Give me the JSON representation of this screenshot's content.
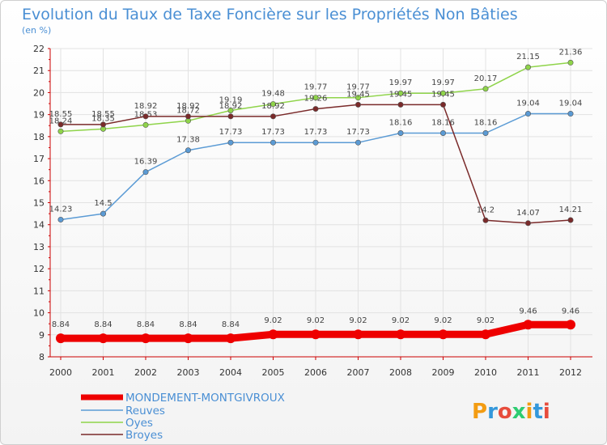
{
  "chart_data": {
    "type": "line",
    "title": "Evolution du Taux de Taxe Foncière sur les Propriétés Non Bâties",
    "ylabel": "(en %)",
    "xlabel": "",
    "x": [
      "2000",
      "2001",
      "2002",
      "2003",
      "2004",
      "2005",
      "2006",
      "2007",
      "2008",
      "2009",
      "2010",
      "2011",
      "2012"
    ],
    "ylim": [
      8,
      22
    ],
    "yticks": [
      "8",
      "9",
      "10",
      "11",
      "12",
      "13",
      "14",
      "15",
      "16",
      "17",
      "18",
      "19",
      "20",
      "21",
      "22"
    ],
    "series": [
      {
        "name": "MONDEMENT-MONTGIVROUX",
        "color": "#ee0000",
        "values": [
          8.84,
          8.84,
          8.84,
          8.84,
          8.84,
          9.02,
          9.02,
          9.02,
          9.02,
          9.02,
          9.02,
          9.46,
          9.46
        ],
        "labels": [
          "8.84",
          "8.84",
          "8.84",
          "8.84",
          "8.84",
          "9.02",
          "9.02",
          "9.02",
          "9.02",
          "9.02",
          "9.02",
          "9.46",
          "9.46"
        ]
      },
      {
        "name": "Reuves",
        "color": "#5b9bd5",
        "values": [
          14.23,
          14.5,
          16.39,
          17.38,
          17.73,
          17.73,
          17.73,
          17.73,
          18.16,
          18.16,
          18.16,
          19.04,
          19.04
        ],
        "labels": [
          "14.23",
          "14.5",
          "16.39",
          "17.38",
          "17.73",
          "17.73",
          "17.73",
          "17.73",
          "18.16",
          "18.16",
          "18.16",
          "19.04",
          "19.04"
        ]
      },
      {
        "name": "Oyes",
        "color": "#8fd44a",
        "values": [
          18.24,
          18.35,
          18.53,
          18.72,
          19.19,
          19.48,
          19.77,
          19.77,
          19.97,
          19.97,
          20.17,
          21.15,
          21.36
        ],
        "labels": [
          "18.24",
          "18.35",
          "18.53",
          "18.72",
          "19.19",
          "19.48",
          "19.77",
          "19.77",
          "19.97",
          "19.97",
          "20.17",
          "21.15",
          "21.36"
        ]
      },
      {
        "name": "Broyes",
        "color": "#7a2a2a",
        "values": [
          18.55,
          18.55,
          18.92,
          18.92,
          18.92,
          18.92,
          19.26,
          19.45,
          19.45,
          19.45,
          14.2,
          14.07,
          14.21
        ],
        "labels": [
          "18.55",
          "18.55",
          "18.92",
          "18.92",
          "18.92",
          "18.92",
          "19.26",
          "19.45",
          "19.45",
          "19.45",
          "14.2",
          "14.07",
          "14.21"
        ]
      }
    ]
  },
  "brand": {
    "logo_text": "Proxiti",
    "colors": [
      "#f39c12",
      "#3498db",
      "#e74c3c",
      "#2ecc71"
    ]
  }
}
